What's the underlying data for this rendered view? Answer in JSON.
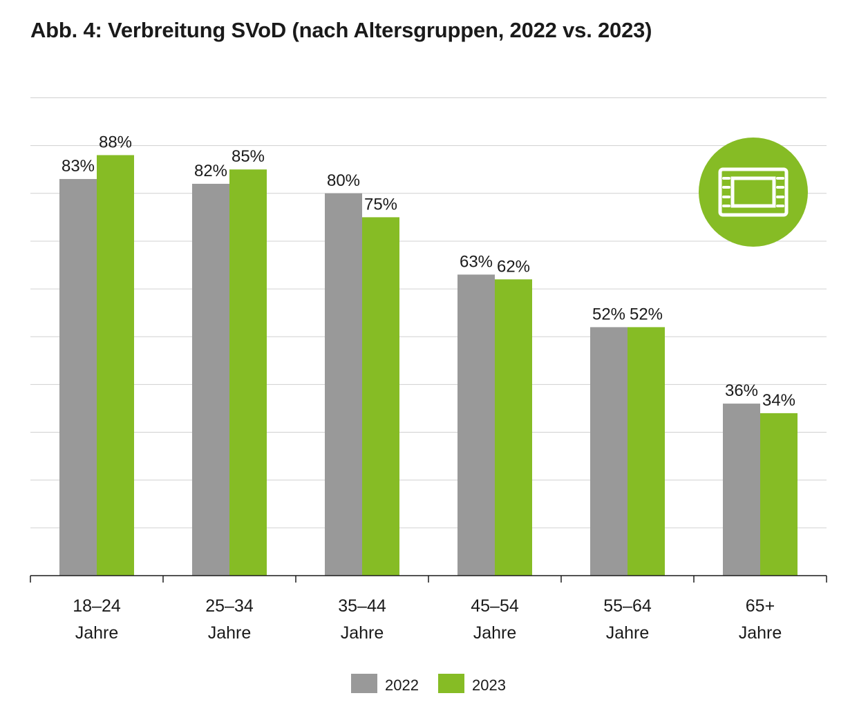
{
  "chart_data": {
    "type": "bar",
    "title": "Abb. 4: Verbreitung SVoD (nach Altersgruppen, 2022 vs. 2023)",
    "categories": [
      [
        "18–24",
        "Jahre"
      ],
      [
        "25–34",
        "Jahre"
      ],
      [
        "35–44",
        "Jahre"
      ],
      [
        "45–54",
        "Jahre"
      ],
      [
        "55–64",
        "Jahre"
      ],
      [
        "65+",
        "Jahre"
      ]
    ],
    "series": [
      {
        "name": "2022",
        "color": "#999999",
        "values": [
          83,
          82,
          80,
          63,
          52,
          36
        ],
        "labels": [
          "83%",
          "82%",
          "80%",
          "63%",
          "52%",
          "36%"
        ]
      },
      {
        "name": "2023",
        "color": "#86bc25",
        "values": [
          88,
          85,
          75,
          62,
          52,
          34
        ],
        "labels": [
          "88%",
          "85%",
          "75%",
          "62%",
          "52%",
          "34%"
        ]
      }
    ],
    "ylim": [
      0,
      100
    ],
    "grid": true,
    "legend": "bottom-center",
    "icon": "film-strip-icon",
    "icon_color": "#86bc25"
  }
}
